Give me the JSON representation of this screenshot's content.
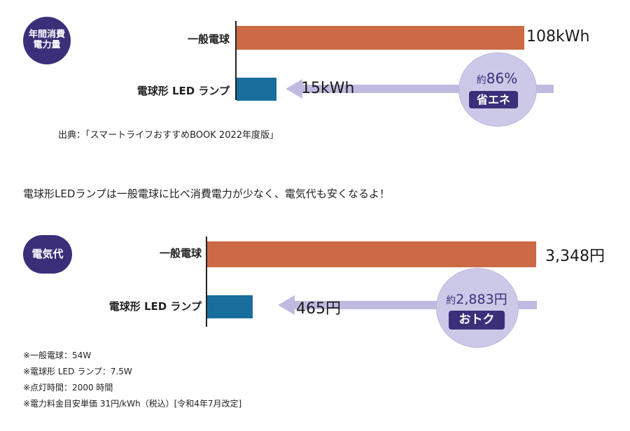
{
  "chart_data": [
    {
      "type": "bar",
      "badge": [
        "年間消費",
        "電力量"
      ],
      "categories": [
        "一般電球",
        "電球形 LED ランプ"
      ],
      "values": [
        108,
        15
      ],
      "value_labels": [
        "108kWh",
        "15kWh"
      ],
      "unit": "kWh",
      "callout": {
        "prefix": "約",
        "value": "86%",
        "label": "省エネ"
      },
      "colors": {
        "incandescent": "#cc6a46",
        "led": "#1a6e9e",
        "arrow": "#bfbbe0",
        "badge": "#3b2f7a"
      }
    },
    {
      "type": "bar",
      "badge": [
        "電気代"
      ],
      "categories": [
        "一般電球",
        "電球形 LED ランプ"
      ],
      "values": [
        3348,
        465
      ],
      "value_labels": [
        "3,348円",
        "465円"
      ],
      "unit": "円",
      "callout": {
        "prefix": "約",
        "value": "2,883円",
        "label": "おトク"
      },
      "colors": {
        "incandescent": "#cc6a46",
        "led": "#1a6e9e",
        "arrow": "#bfbbe0",
        "badge": "#3b2f7a"
      }
    }
  ],
  "source": "出典：「スマートライフおすすめBOOK 2022年度版」",
  "caption": "電球形LEDランプは一般電球に比べ消費電力が少なく、電気代も安くなるよ！",
  "notes": [
    "※一般電球：54W",
    "※電球形 LED ランプ：7.5W",
    "※点灯時間：2000 時間",
    "※電力料金目安単価 31円/kWh（税込）[令和4年7月改定]"
  ]
}
